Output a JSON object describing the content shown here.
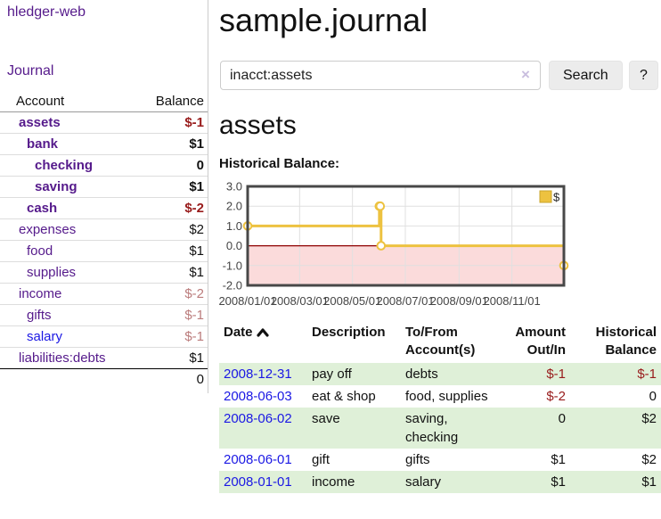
{
  "sidebar": {
    "brand": "hledger-web",
    "journal_link": "Journal",
    "table": {
      "account_header": "Account",
      "balance_header": "Balance",
      "accounts": [
        {
          "name": "assets",
          "balance": "$-1"
        },
        {
          "name": "bank",
          "balance": "$1"
        },
        {
          "name": "checking",
          "balance": "0"
        },
        {
          "name": "saving",
          "balance": "$1"
        },
        {
          "name": "cash",
          "balance": "$-2"
        },
        {
          "name": "expenses",
          "balance": "$2"
        },
        {
          "name": "food",
          "balance": "$1"
        },
        {
          "name": "supplies",
          "balance": "$1"
        },
        {
          "name": "income",
          "balance": "$-2"
        },
        {
          "name": "gifts",
          "balance": "$-1"
        },
        {
          "name": "salary",
          "balance": "$-1"
        },
        {
          "name": "liabilities:debts",
          "balance": "$1"
        }
      ],
      "total": "0"
    }
  },
  "header": {
    "title": "sample.journal"
  },
  "search": {
    "query": "inacct:assets",
    "clear_icon": "×",
    "button_label": "Search",
    "help_label": "?"
  },
  "assets_section": {
    "heading": "assets",
    "chart_label": "Historical Balance:"
  },
  "chart_data": {
    "type": "line",
    "title": "Historical Balance",
    "series": [
      {
        "name": "$",
        "color": "#edc240",
        "step": true,
        "points": [
          [
            "2008-01-01",
            1
          ],
          [
            "2008-06-01",
            2
          ],
          [
            "2008-06-02",
            2
          ],
          [
            "2008-06-03",
            0
          ],
          [
            "2008-12-31",
            -1
          ]
        ]
      }
    ],
    "x_domain": [
      "2008-01-01",
      "2008-12-31"
    ],
    "x_ticks": [
      "2008/01/01",
      "2008/03/01",
      "2008/05/01",
      "2008/07/01",
      "2008/09/01",
      "2008/11/01"
    ],
    "y_ticks": [
      "3.0",
      "2.0",
      "1.0",
      "0.0",
      "-1.0",
      "-2.0"
    ],
    "ylim": [
      -2,
      3
    ],
    "grid": true,
    "legend_position": "top-right",
    "negative_region_color": "#fbdbdb",
    "zero_line_color": "#8e0000"
  },
  "journal_table": {
    "headers": {
      "date": "Date",
      "description": "Description",
      "account": "To/From Account(s)",
      "amount": "Amount Out/In",
      "balance": "Historical Balance"
    },
    "rows": [
      {
        "date": "2008-12-31",
        "description": "pay off",
        "account": "debts",
        "amount": "$-1",
        "balance": "$-1"
      },
      {
        "date": "2008-06-03",
        "description": "eat & shop",
        "account": "food, supplies",
        "amount": "$-2",
        "balance": "0"
      },
      {
        "date": "2008-06-02",
        "description": "save",
        "account": "saving, checking",
        "amount": "0",
        "balance": "$2"
      },
      {
        "date": "2008-06-01",
        "description": "gift",
        "account": "gifts",
        "amount": "$1",
        "balance": "$2"
      },
      {
        "date": "2008-01-01",
        "description": "income",
        "account": "salary",
        "amount": "$1",
        "balance": "$1"
      }
    ]
  },
  "icons": {
    "sort_asc": "chevron-up",
    "clear_search": "×"
  },
  "colors": {
    "link_purple": "#551a8b",
    "link_blue": "#1b18e4",
    "negative_strong": "#981b1b",
    "negative_dim": "#bb7c7c",
    "row_green": "#dff0d8",
    "series_yellow": "#edc240",
    "negative_region": "#fbdbdb",
    "zero_line": "#8e0000"
  }
}
